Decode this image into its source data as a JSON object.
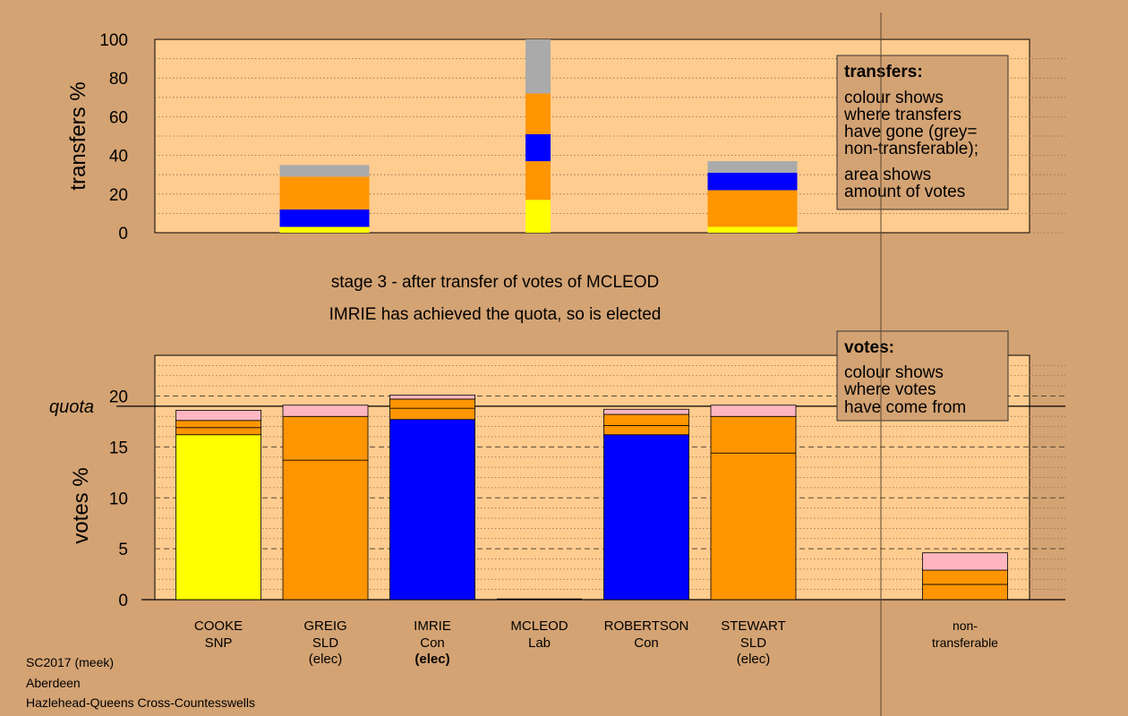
{
  "stage_title": "stage 3 - after transfer of votes of MCLEOD",
  "stage_note": "IMRIE has achieved the quota, so is elected",
  "footer": {
    "line1": "SC2017 (meek)",
    "line2": "Aberdeen",
    "line3": "Hazlehead-Queens Cross-Countesswells"
  },
  "colors": {
    "background": "#d4a373",
    "plot_bg": "#ffcc8f",
    "SNP": "#ffff00",
    "SLD": "#ff9500",
    "Con": "#0000ff",
    "Lab": "#ff0000",
    "other": "#ffb6c1",
    "nontransferable": "#aaaaaa"
  },
  "chart_data": [
    {
      "type": "bar",
      "stacked": true,
      "ylabel": "transfers %",
      "ylim": [
        0,
        100
      ],
      "yticks": [
        "0",
        "20",
        "40",
        "60",
        "80",
        "100"
      ],
      "ytick_values": [
        0,
        20,
        40,
        60,
        80,
        100
      ],
      "grid": "dotted",
      "legend": {
        "title": "transfers:",
        "lines": [
          "colour shows",
          "where transfers",
          "have gone (grey=",
          "non-transferable);"
        ],
        "lines2": [
          "area shows",
          "amount of votes"
        ]
      },
      "bars": [
        {
          "position": 2,
          "segments": [
            {
              "value": 3,
              "color": "#ffff00"
            },
            {
              "value": 9,
              "color": "#0000ff"
            },
            {
              "value": 17,
              "color": "#ff9500"
            },
            {
              "value": 6,
              "color": "#aaaaaa"
            }
          ]
        },
        {
          "position": 4,
          "segments": [
            {
              "value": 17,
              "color": "#ffff00"
            },
            {
              "value": 20,
              "color": "#ff9500"
            },
            {
              "value": 14,
              "color": "#0000ff"
            },
            {
              "value": 21,
              "color": "#ff9500"
            },
            {
              "value": 28,
              "color": "#aaaaaa"
            }
          ]
        },
        {
          "position": 6,
          "segments": [
            {
              "value": 3,
              "color": "#ffff00"
            },
            {
              "value": 19,
              "color": "#ff9500"
            },
            {
              "value": 9,
              "color": "#0000ff"
            },
            {
              "value": 6,
              "color": "#aaaaaa"
            }
          ]
        }
      ]
    },
    {
      "type": "bar",
      "stacked": true,
      "ylabel": "votes %",
      "ylim": [
        0,
        24
      ],
      "yticks": [
        "0",
        "5",
        "10",
        "15",
        "20"
      ],
      "ytick_values": [
        0,
        5,
        10,
        15,
        20
      ],
      "quota": 19,
      "quota_label": "quota",
      "grid": "dashed",
      "legend": {
        "title": "votes:",
        "lines": [
          "colour shows",
          "where votes",
          "have come from"
        ]
      },
      "candidates": [
        {
          "name": "COOKE",
          "party": "SNP",
          "status": "",
          "segments": [
            {
              "value": 16.2,
              "color": "#ffff00"
            },
            {
              "value": 0.7,
              "color": "#ff9500"
            },
            {
              "value": 0.7,
              "color": "#ff9500"
            },
            {
              "value": 1.0,
              "color": "#ffb6c1"
            }
          ]
        },
        {
          "name": "GREIG",
          "party": "SLD",
          "status": "(elec)",
          "segments": [
            {
              "value": 13.7,
              "color": "#ff9500"
            },
            {
              "value": 4.3,
              "color": "#ff9500"
            },
            {
              "value": 1.1,
              "color": "#ffb6c1"
            }
          ]
        },
        {
          "name": "IMRIE",
          "party": "Con",
          "status": "(elec)",
          "status_bold": true,
          "segments": [
            {
              "value": 17.7,
              "color": "#0000ff"
            },
            {
              "value": 1.1,
              "color": "#ff9500"
            },
            {
              "value": 0.9,
              "color": "#ff9500"
            },
            {
              "value": 0.4,
              "color": "#ffb6c1"
            }
          ]
        },
        {
          "name": "MCLEOD",
          "party": "Lab",
          "status": "",
          "segments": []
        },
        {
          "name": "ROBERTSON",
          "party": "Con",
          "status": "",
          "segments": [
            {
              "value": 16.2,
              "color": "#0000ff"
            },
            {
              "value": 0.9,
              "color": "#ff9500"
            },
            {
              "value": 1.1,
              "color": "#ff9500"
            },
            {
              "value": 0.5,
              "color": "#ffb6c1"
            }
          ]
        },
        {
          "name": "STEWART",
          "party": "SLD",
          "status": "(elec)",
          "segments": [
            {
              "value": 14.4,
              "color": "#ff9500"
            },
            {
              "value": 3.6,
              "color": "#ff9500"
            },
            {
              "value": 1.1,
              "color": "#ffb6c1"
            }
          ]
        },
        {
          "name": "non-",
          "party": "transferable",
          "status": "",
          "nontransferable": true,
          "segments": [
            {
              "value": 1.5,
              "color": "#ff9500"
            },
            {
              "value": 1.4,
              "color": "#ff9500"
            },
            {
              "value": 1.7,
              "color": "#ffb6c1"
            }
          ]
        }
      ]
    }
  ]
}
